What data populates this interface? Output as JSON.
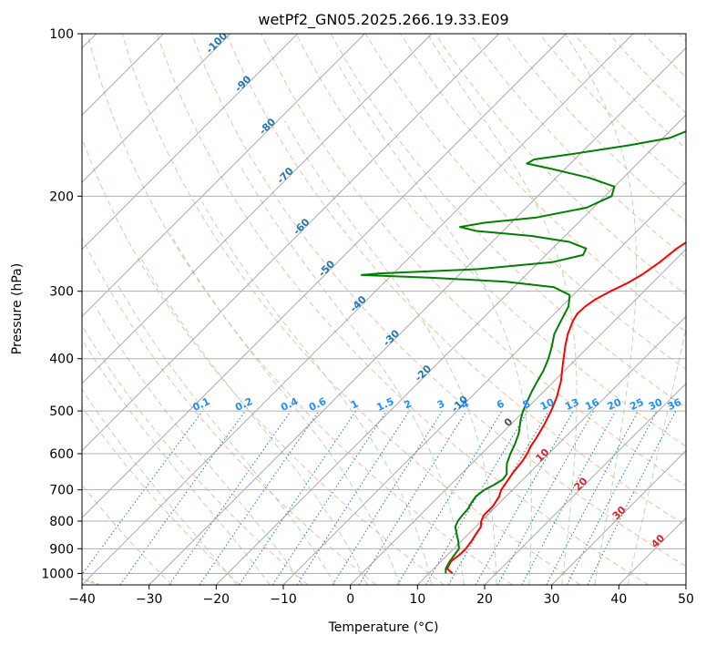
{
  "chart_data": {
    "type": "line",
    "title": "wetPf2_GN05.2025.266.19.33.E09",
    "xlabel": "Temperature (°C)",
    "ylabel": "Pressure (hPa)",
    "xlim": [
      -40,
      50
    ],
    "ylim": [
      1050,
      100
    ],
    "y_scale": "log",
    "x_ticks": [
      -40,
      -30,
      -20,
      -10,
      0,
      10,
      20,
      30,
      40,
      50
    ],
    "y_ticks": [
      100,
      200,
      300,
      400,
      500,
      600,
      700,
      800,
      900,
      1000
    ],
    "grid": true,
    "skew": true,
    "colors": {
      "temperature": "#ff0000",
      "dewpoint": "#008000",
      "isotherm": "#8a8a8a",
      "dry_adiabat": "#f4a582",
      "moist_adiabat": "#a6d5a6",
      "mixing_ratio": "#1f77b4",
      "mixing_label": "#1e90ff",
      "temp_label": "#1f77b4",
      "positive_label": "#d62728",
      "zero_label": "#555555",
      "grid": "#b0b0b0",
      "lcl_curve": "#d2b48c"
    },
    "mixing_ratio_labels": [
      "0.1",
      "0.2",
      "0.4",
      "0.6",
      "1",
      "1.5",
      "2",
      "3",
      "4",
      "6",
      "8",
      "10",
      "13",
      "16",
      "20",
      "25",
      "30",
      "36"
    ],
    "mixing_ratio_values": [
      0.1,
      0.2,
      0.4,
      0.6,
      1,
      1.5,
      2,
      3,
      4,
      6,
      8,
      10,
      13,
      16,
      20,
      25,
      30,
      36
    ],
    "isotherm_labels_negative": [
      "-100",
      "-90",
      "-80",
      "-70",
      "-60",
      "-50",
      "-40",
      "-30",
      "-20",
      "-10"
    ],
    "isotherm_labels_positive": [
      "0",
      "10",
      "20",
      "30",
      "40"
    ],
    "series": [
      {
        "name": "",
        "role": "temperature",
        "points": [
          [
            1000,
            13.5
          ],
          [
            980,
            12
          ],
          [
            950,
            11.5
          ],
          [
            920,
            11.8
          ],
          [
            900,
            11.8
          ],
          [
            870,
            11.5
          ],
          [
            850,
            11.2
          ],
          [
            820,
            10.8
          ],
          [
            800,
            10
          ],
          [
            780,
            9.5
          ],
          [
            750,
            9.5
          ],
          [
            720,
            9
          ],
          [
            700,
            8.3
          ],
          [
            680,
            8
          ],
          [
            650,
            7.5
          ],
          [
            620,
            7.2
          ],
          [
            600,
            6.8
          ],
          [
            580,
            6.2
          ],
          [
            560,
            5.8
          ],
          [
            530,
            5
          ],
          [
            500,
            4
          ],
          [
            470,
            2.7
          ],
          [
            440,
            1
          ],
          [
            410,
            -1.2
          ],
          [
            380,
            -3.5
          ],
          [
            360,
            -5
          ],
          [
            340,
            -6.2
          ],
          [
            330,
            -6.6
          ],
          [
            320,
            -6.5
          ],
          [
            310,
            -6
          ],
          [
            300,
            -5
          ],
          [
            290,
            -3.7
          ],
          [
            280,
            -2.8
          ],
          [
            265,
            -2
          ],
          [
            250,
            -1.5
          ],
          [
            230,
            0
          ],
          [
            210,
            1
          ],
          [
            195,
            1.8
          ],
          [
            180,
            3.5
          ],
          [
            165,
            5
          ],
          [
            150,
            6.2
          ],
          [
            140,
            7.2
          ],
          [
            130,
            7.8
          ],
          [
            120,
            8.3
          ],
          [
            113,
            7.8
          ],
          [
            107,
            8.2
          ],
          [
            100,
            8.7
          ]
        ]
      },
      {
        "name": "",
        "role": "dewpoint",
        "points": [
          [
            1000,
            12.5
          ],
          [
            980,
            11.8
          ],
          [
            950,
            11.3
          ],
          [
            920,
            11
          ],
          [
            900,
            10.8
          ],
          [
            870,
            9.5
          ],
          [
            850,
            8.5
          ],
          [
            820,
            7
          ],
          [
            800,
            6.5
          ],
          [
            780,
            6.3
          ],
          [
            760,
            6.2
          ],
          [
            740,
            5.8
          ],
          [
            720,
            5.5
          ],
          [
            700,
            5.8
          ],
          [
            685,
            6.5
          ],
          [
            670,
            7
          ],
          [
            655,
            6.8
          ],
          [
            640,
            6
          ],
          [
            625,
            5.2
          ],
          [
            600,
            4.3
          ],
          [
            575,
            3.5
          ],
          [
            550,
            2.5
          ],
          [
            520,
            0.8
          ],
          [
            500,
            -0.2
          ],
          [
            480,
            -1
          ],
          [
            460,
            -1.8
          ],
          [
            440,
            -2.5
          ],
          [
            420,
            -3.2
          ],
          [
            400,
            -4.2
          ],
          [
            380,
            -5.5
          ],
          [
            360,
            -7
          ],
          [
            340,
            -8
          ],
          [
            320,
            -9
          ],
          [
            305,
            -10.5
          ],
          [
            295,
            -14
          ],
          [
            288,
            -22
          ],
          [
            283,
            -34
          ],
          [
            280,
            -44.5
          ],
          [
            278,
            -42
          ],
          [
            273,
            -28
          ],
          [
            265,
            -18
          ],
          [
            257,
            -14.5
          ],
          [
            250,
            -15
          ],
          [
            243,
            -18.5
          ],
          [
            237,
            -25
          ],
          [
            232,
            -34
          ],
          [
            228,
            -37
          ],
          [
            224,
            -34
          ],
          [
            219,
            -27
          ],
          [
            210,
            -21
          ],
          [
            200,
            -19
          ],
          [
            192,
            -20
          ],
          [
            185,
            -25
          ],
          [
            178,
            -32
          ],
          [
            174,
            -36.5
          ],
          [
            171,
            -36
          ],
          [
            167,
            -31
          ],
          [
            161,
            -24
          ],
          [
            156,
            -19
          ],
          [
            150,
            -17
          ],
          [
            143,
            -16.5
          ],
          [
            136,
            -16.5
          ],
          [
            128,
            -16.5
          ],
          [
            120,
            -14.5
          ],
          [
            112,
            -11
          ],
          [
            105,
            -7.5
          ],
          [
            100,
            -5
          ]
        ]
      }
    ]
  }
}
